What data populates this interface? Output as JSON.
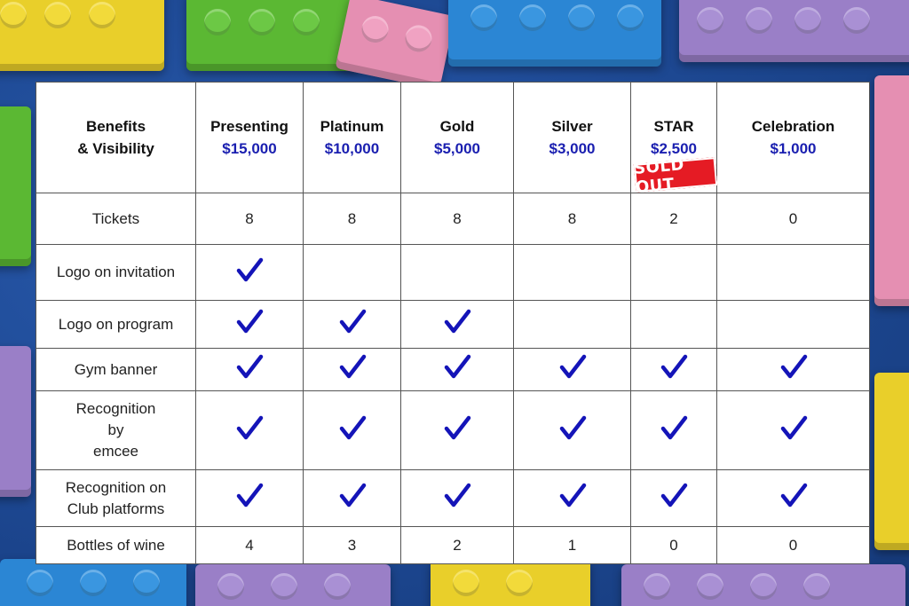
{
  "header": {
    "benefits_line1": "Benefits",
    "benefits_line2": "& Visibility",
    "tiers": [
      {
        "name": "Presenting",
        "price": "$15,000"
      },
      {
        "name": "Platinum",
        "price": "$10,000"
      },
      {
        "name": "Gold",
        "price": "$5,000"
      },
      {
        "name": "Silver",
        "price": "$3,000"
      },
      {
        "name": "STAR",
        "price": "$2,500"
      },
      {
        "name": "Celebration",
        "price": "$1,000"
      }
    ],
    "sold_out": "SOLD OUT"
  },
  "rows": [
    {
      "label": "Tickets",
      "cells": [
        "8",
        "8",
        "8",
        "8",
        "2",
        "0"
      ]
    },
    {
      "label": "Logo on invitation",
      "cells": [
        "check",
        "",
        "",
        "",
        "",
        ""
      ]
    },
    {
      "label": "Logo on program",
      "cells": [
        "check",
        "check",
        "check",
        "",
        "",
        ""
      ]
    },
    {
      "label": "Gym banner",
      "cells": [
        "check",
        "check",
        "check",
        "check",
        "check",
        "check"
      ]
    },
    {
      "label_lines": [
        "Recognition",
        "by",
        "emcee"
      ],
      "cells": [
        "check",
        "check",
        "check",
        "check",
        "check",
        "check"
      ]
    },
    {
      "label_lines": [
        "Recognition on",
        "Club platforms"
      ],
      "cells": [
        "check",
        "check",
        "check",
        "check",
        "check",
        "check"
      ]
    },
    {
      "label": "Bottles of wine",
      "cells": [
        "4",
        "3",
        "2",
        "1",
        "0",
        "0"
      ]
    }
  ],
  "colors": {
    "price": "#1a1fb0",
    "check": "#1414b8",
    "sold_out_bg": "#e51b24"
  },
  "icons": {
    "check": "checkmark-icon"
  }
}
